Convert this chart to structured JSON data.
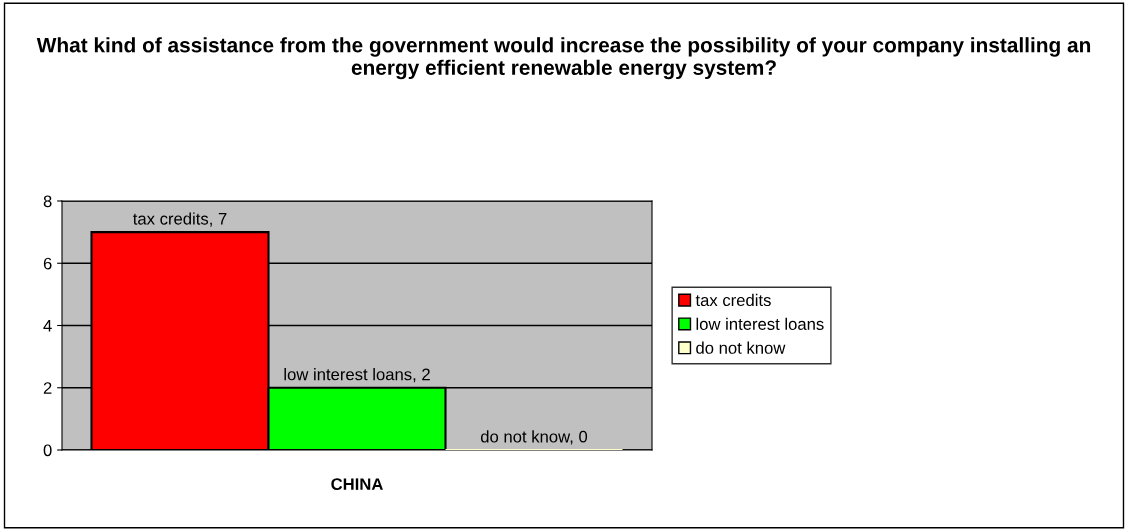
{
  "chart_data": {
    "type": "bar",
    "title": "What kind of assistance from the government would increase the possibility of your company installing an energy efficient renewable energy system?",
    "categories": [
      "CHINA"
    ],
    "series": [
      {
        "name": "tax credits",
        "color": "#ff0000",
        "values": [
          7
        ],
        "value_labels": [
          "tax credits, 7"
        ]
      },
      {
        "name": "low interest loans",
        "color": "#00ff00",
        "values": [
          2
        ],
        "value_labels": [
          "low interest loans, 2"
        ]
      },
      {
        "name": "do not know",
        "color": "#ffffcc",
        "values": [
          0
        ],
        "value_labels": [
          "do not know, 0"
        ]
      }
    ],
    "ylim": [
      0,
      8
    ],
    "yticks": [
      0,
      2,
      4,
      6,
      8
    ],
    "grid": "y",
    "legend": "right"
  }
}
